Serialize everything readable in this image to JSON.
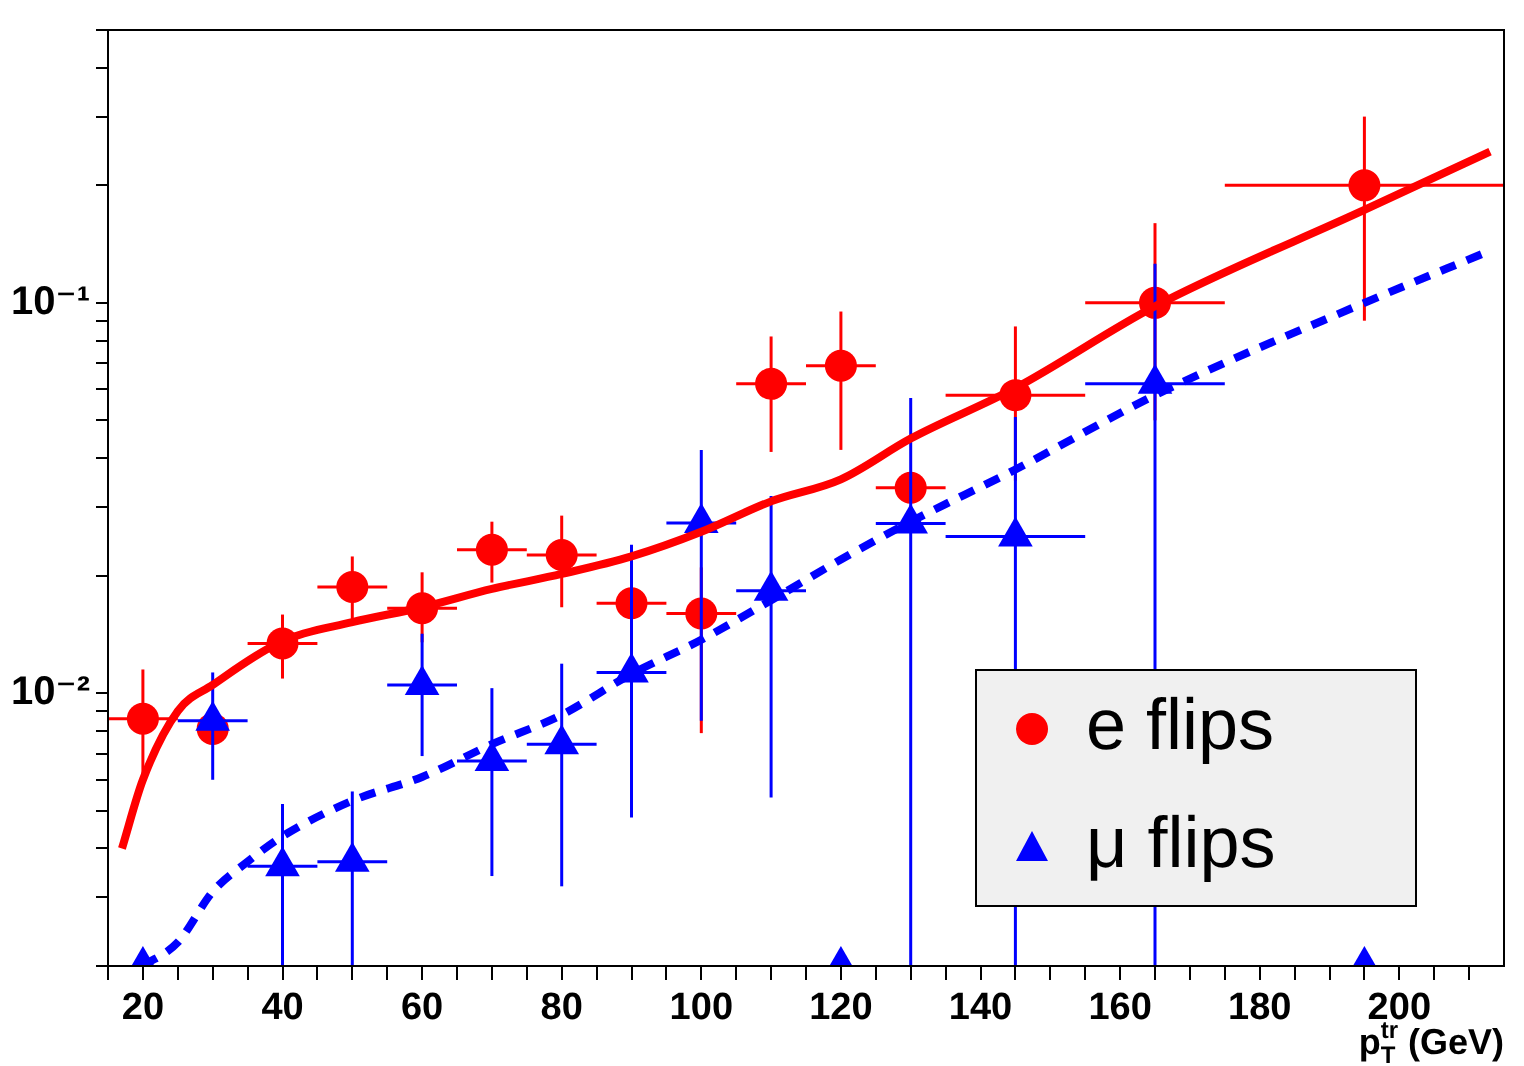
{
  "chart_data": {
    "type": "scatter",
    "xlabel": "p$_{T}$$^{tr}$ (GeV)",
    "xlim": [
      15,
      215
    ],
    "ylim": [
      0.002,
      0.5
    ],
    "log": "y",
    "grid": false,
    "legend": "bottom right",
    "xticks": [
      {
        "value": 15,
        "label": null
      },
      20,
      {
        "value": 25,
        "label": null
      },
      {
        "value": 30,
        "label": null
      },
      {
        "value": 35,
        "label": null
      },
      40,
      {
        "value": 45,
        "label": null
      },
      {
        "value": 50,
        "label": null
      },
      {
        "value": 55,
        "label": null
      },
      60,
      {
        "value": 65,
        "label": null
      },
      {
        "value": 70,
        "label": null
      },
      {
        "value": 75,
        "label": null
      },
      80,
      {
        "value": 85,
        "label": null
      },
      {
        "value": 90,
        "label": null
      },
      {
        "value": 95,
        "label": null
      },
      100,
      {
        "value": 105,
        "label": null
      },
      {
        "value": 110,
        "label": null
      },
      {
        "value": 115,
        "label": null
      },
      120,
      {
        "value": 125,
        "label": null
      },
      {
        "value": 130,
        "label": null
      },
      {
        "value": 135,
        "label": null
      },
      140,
      {
        "value": 145,
        "label": null
      },
      {
        "value": 150,
        "label": null
      },
      {
        "value": 155,
        "label": null
      },
      160,
      {
        "value": 165,
        "label": null
      },
      {
        "value": 170,
        "label": null
      },
      {
        "value": 175,
        "label": null
      },
      180,
      {
        "value": 185,
        "label": null
      },
      {
        "value": 190,
        "label": null
      },
      {
        "value": 195,
        "label": null
      },
      200,
      {
        "value": 205,
        "label": null
      },
      {
        "value": 210,
        "label": null
      }
    ],
    "yticks": [
      {
        "value": 0.002,
        "label": null
      },
      {
        "value": 0.003,
        "label": null
      },
      {
        "value": 0.004,
        "label": null
      },
      {
        "value": 0.005,
        "label": null
      },
      {
        "value": 0.006,
        "label": null
      },
      {
        "value": 0.007,
        "label": null
      },
      {
        "value": 0.008,
        "label": null
      },
      {
        "value": 0.009,
        "label": null
      },
      {
        "value": 0.01,
        "label": "10⁻²"
      },
      {
        "value": 0.02,
        "label": null
      },
      {
        "value": 0.03,
        "label": null
      },
      {
        "value": 0.04,
        "label": null
      },
      {
        "value": 0.05,
        "label": null
      },
      {
        "value": 0.06,
        "label": null
      },
      {
        "value": 0.07,
        "label": null
      },
      {
        "value": 0.08,
        "label": null
      },
      {
        "value": 0.09,
        "label": null
      },
      {
        "value": 0.1,
        "label": "10⁻¹"
      },
      {
        "value": 0.2,
        "label": null
      },
      {
        "value": 0.3,
        "label": null
      },
      {
        "value": 0.4,
        "label": null
      },
      {
        "value": 0.5,
        "label": null
      }
    ],
    "series": [
      {
        "name": "e flips",
        "type": "scatter",
        "marker": "circle",
        "color": "#ff0000",
        "x": [
          20,
          30,
          40,
          50,
          60,
          70,
          80,
          90,
          100,
          110,
          120,
          130,
          145,
          165,
          195
        ],
        "values": [
          0.0086,
          0.0081,
          0.0134,
          0.0187,
          0.0165,
          0.0233,
          0.0226,
          0.017,
          0.016,
          0.062,
          0.069,
          0.0336,
          0.058,
          0.1,
          0.2
        ],
        "errors": [
          [
            0.0058,
            0.0115
          ],
          null,
          [
            0.0109,
            0.0159
          ],
          [
            0.0151,
            0.0224
          ],
          [
            0.0135,
            0.0204
          ],
          [
            0.0192,
            0.0275
          ],
          [
            0.0166,
            0.0285
          ],
          [
            0.012,
            0.0233
          ],
          [
            0.0079,
            0.021
          ],
          [
            0.0415,
            0.082
          ],
          [
            0.042,
            0.095
          ],
          null,
          [
            0.035,
            0.087
          ],
          [
            0.05,
            0.16
          ],
          [
            0.09,
            0.3
          ]
        ],
        "xerrors": [
          5,
          null,
          5,
          5,
          5,
          5,
          5,
          5,
          5,
          5,
          5,
          5,
          10,
          10,
          20
        ]
      },
      {
        "name": "μ flips",
        "type": "scatter",
        "marker": "triangle",
        "color": "#0000ff",
        "x": [
          20,
          30,
          40,
          50,
          60,
          70,
          80,
          90,
          100,
          110,
          120,
          130,
          145,
          165,
          195
        ],
        "values": [
          0.002,
          0.0085,
          0.0036,
          0.0037,
          0.0105,
          0.0067,
          0.0074,
          0.0113,
          0.0273,
          0.0183,
          0.002,
          0.0272,
          0.0252,
          0.062,
          0.002
        ],
        "errors": [
          null,
          [
            0.006,
            0.0113
          ],
          [
            0.002,
            0.0052
          ],
          [
            0.002,
            0.0056
          ],
          [
            0.0069,
            0.0142
          ],
          [
            0.0034,
            0.0103
          ],
          [
            0.0032,
            0.0119
          ],
          [
            0.0048,
            0.024
          ],
          [
            0.0085,
            0.042
          ],
          [
            0.0054,
            0.032
          ],
          null,
          [
            0.002,
            0.057
          ],
          [
            0.002,
            0.051
          ],
          [
            0.002,
            0.126
          ],
          null
        ],
        "xerrors": [
          null,
          5,
          5,
          5,
          5,
          5,
          5,
          5,
          5,
          5,
          null,
          5,
          10,
          10,
          null
        ]
      },
      {
        "type": "line",
        "marker": "none",
        "line_style": "solid",
        "color": "#ff0000",
        "x": [
          17,
          20,
          25,
          30,
          40,
          50,
          60,
          70,
          80,
          90,
          100,
          110,
          120,
          130,
          145,
          165,
          195,
          213
        ],
        "values": [
          0.004,
          0.006,
          0.009,
          0.0105,
          0.0136,
          0.0152,
          0.0166,
          0.0185,
          0.0202,
          0.0224,
          0.0259,
          0.031,
          0.0353,
          0.0449,
          0.0605,
          0.098,
          0.173,
          0.244
        ]
      },
      {
        "type": "line",
        "marker": "none",
        "line_style": "dashed",
        "color": "#0000ff",
        "x": [
          20,
          25,
          30,
          35,
          40,
          50,
          60,
          70,
          80,
          90,
          100,
          110,
          120,
          130,
          145,
          165,
          195,
          213
        ],
        "values": [
          0.002,
          0.0023,
          0.0031,
          0.0037,
          0.0043,
          0.0053,
          0.0061,
          0.0074,
          0.0088,
          0.0112,
          0.0137,
          0.0173,
          0.022,
          0.0275,
          0.0374,
          0.058,
          0.1,
          0.136
        ]
      }
    ]
  }
}
